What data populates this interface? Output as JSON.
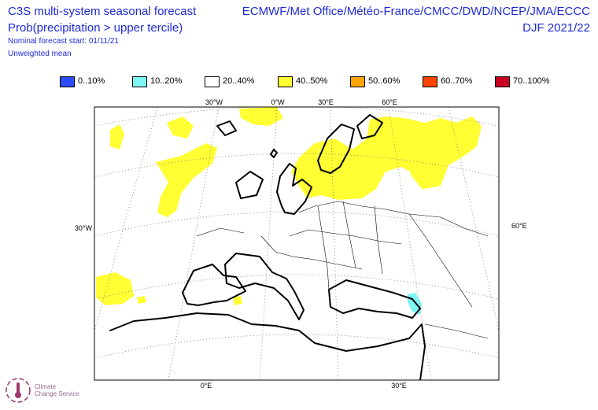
{
  "header": {
    "title_line1": "C3S multi-system seasonal forecast",
    "title_line2": "Prob(precipitation > upper tercile)",
    "title_line3": "Nominal forecast start: 01/11/21",
    "title_line4": "Unweighted mean",
    "providers": "ECMWF/Met Office/Météo-France/CMCC/DWD/NCEP/JMA/ECCC",
    "season": "DJF 2021/22"
  },
  "legend": [
    {
      "label": "0..10%",
      "color": "#2f4bff"
    },
    {
      "label": "10..20%",
      "color": "#7ff6f6"
    },
    {
      "label": "20..40%",
      "color": "#ffffff"
    },
    {
      "label": "40..50%",
      "color": "#ffff33"
    },
    {
      "label": "50..60%",
      "color": "#ffa500"
    },
    {
      "label": "60..70%",
      "color": "#ff4400"
    },
    {
      "label": "70..100%",
      "color": "#cc0022"
    }
  ],
  "map": {
    "ticks_top": [
      "30°W",
      "0°W",
      "30°E",
      "60°E"
    ],
    "ticks_bottom": [
      "0°E",
      "30°E"
    ],
    "tick_left": "30°W",
    "tick_right": "60°E"
  },
  "logo": {
    "line1": "Climate",
    "line2": "Change Service"
  }
}
